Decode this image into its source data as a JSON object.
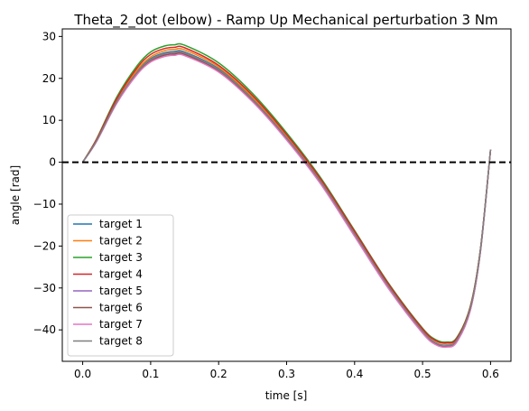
{
  "chart_data": {
    "type": "line",
    "title": "Theta_2_dot (elbow) - Ramp Up Mechanical perturbation 3 Nm",
    "xlabel": "time [s]",
    "ylabel": "angle [rad]",
    "xlim": [
      -0.03,
      0.63
    ],
    "ylim": [
      -47.5,
      31.8
    ],
    "xticks": [
      0.0,
      0.1,
      0.2,
      0.3,
      0.4,
      0.5,
      0.6
    ],
    "xtick_labels": [
      "0.0",
      "0.1",
      "0.2",
      "0.3",
      "0.4",
      "0.5",
      "0.6"
    ],
    "yticks": [
      30,
      20,
      10,
      0,
      -10,
      -20,
      -30,
      -40
    ],
    "ytick_labels": [
      "30",
      "20",
      "10",
      "0",
      "−10",
      "−20",
      "−30",
      "−40"
    ],
    "grid": false,
    "legend_position": "lower-left",
    "reference_line": {
      "y": 0,
      "style": "dashed",
      "color": "#000000"
    },
    "series": [
      {
        "name": "target 1",
        "color": "#1f77b4",
        "x": [
          0.0,
          0.02,
          0.05,
          0.08,
          0.1,
          0.12,
          0.135,
          0.15,
          0.2,
          0.25,
          0.3,
          0.35,
          0.4,
          0.45,
          0.5,
          0.52,
          0.535,
          0.55,
          0.57,
          0.585,
          0.6
        ],
        "y": [
          0.0,
          5.0,
          14.5,
          21.6,
          24.7,
          26.1,
          26.4,
          26.3,
          22.3,
          15.2,
          6.1,
          -4.4,
          -16.9,
          -29.3,
          -39.9,
          -42.6,
          -43.1,
          -42.1,
          -34.7,
          -21.0,
          3.0
        ]
      },
      {
        "name": "target 2",
        "color": "#ff7f0e",
        "x": [
          0.0,
          0.02,
          0.05,
          0.08,
          0.1,
          0.12,
          0.135,
          0.15,
          0.2,
          0.25,
          0.3,
          0.35,
          0.4,
          0.45,
          0.5,
          0.52,
          0.535,
          0.55,
          0.57,
          0.585,
          0.6
        ],
        "y": [
          0.0,
          5.1,
          14.8,
          22.0,
          25.1,
          26.6,
          26.9,
          26.8,
          22.7,
          15.5,
          6.3,
          -4.2,
          -16.7,
          -29.2,
          -39.9,
          -42.7,
          -43.2,
          -42.2,
          -34.8,
          -21.1,
          3.0
        ]
      },
      {
        "name": "target 3",
        "color": "#2ca02c",
        "x": [
          0.0,
          0.02,
          0.05,
          0.08,
          0.1,
          0.12,
          0.135,
          0.15,
          0.2,
          0.25,
          0.3,
          0.35,
          0.4,
          0.45,
          0.5,
          0.52,
          0.535,
          0.55,
          0.57,
          0.585,
          0.6
        ],
        "y": [
          0.0,
          5.4,
          15.5,
          23.0,
          26.3,
          27.7,
          28.0,
          27.9,
          23.7,
          16.4,
          7.0,
          -3.7,
          -16.3,
          -28.9,
          -39.6,
          -42.4,
          -42.9,
          -41.9,
          -34.5,
          -20.9,
          3.0
        ]
      },
      {
        "name": "target 4",
        "color": "#d62728",
        "x": [
          0.0,
          0.02,
          0.05,
          0.08,
          0.1,
          0.12,
          0.135,
          0.15,
          0.2,
          0.25,
          0.3,
          0.35,
          0.4,
          0.45,
          0.5,
          0.52,
          0.535,
          0.55,
          0.57,
          0.585,
          0.6
        ],
        "y": [
          0.0,
          5.3,
          15.1,
          22.5,
          25.7,
          27.1,
          27.4,
          27.3,
          23.1,
          15.9,
          6.6,
          -4.0,
          -16.5,
          -29.1,
          -39.8,
          -42.6,
          -43.1,
          -42.1,
          -34.7,
          -21.0,
          3.0
        ]
      },
      {
        "name": "target 5",
        "color": "#9467bd",
        "x": [
          0.0,
          0.02,
          0.05,
          0.08,
          0.1,
          0.12,
          0.135,
          0.15,
          0.2,
          0.25,
          0.3,
          0.35,
          0.4,
          0.45,
          0.5,
          0.52,
          0.535,
          0.55,
          0.57,
          0.585,
          0.6
        ],
        "y": [
          0.0,
          4.9,
          14.2,
          21.2,
          24.2,
          25.6,
          25.9,
          25.8,
          21.8,
          14.7,
          5.6,
          -4.9,
          -17.4,
          -29.9,
          -40.6,
          -43.4,
          -43.9,
          -42.8,
          -35.3,
          -21.4,
          3.0
        ]
      },
      {
        "name": "target 6",
        "color": "#8c564b",
        "x": [
          0.0,
          0.02,
          0.05,
          0.08,
          0.1,
          0.12,
          0.135,
          0.15,
          0.2,
          0.25,
          0.3,
          0.35,
          0.4,
          0.45,
          0.5,
          0.52,
          0.535,
          0.55,
          0.57,
          0.585,
          0.6
        ],
        "y": [
          0.0,
          4.9,
          14.1,
          21.1,
          24.1,
          25.5,
          25.8,
          25.7,
          21.7,
          14.6,
          5.5,
          -5.0,
          -17.5,
          -30.0,
          -40.7,
          -43.5,
          -44.0,
          -42.9,
          -35.4,
          -21.5,
          3.0
        ]
      },
      {
        "name": "target 7",
        "color": "#e377c2",
        "x": [
          0.0,
          0.02,
          0.05,
          0.08,
          0.1,
          0.12,
          0.135,
          0.15,
          0.2,
          0.25,
          0.3,
          0.35,
          0.4,
          0.45,
          0.5,
          0.52,
          0.535,
          0.55,
          0.57,
          0.585,
          0.6
        ],
        "y": [
          0.0,
          4.8,
          14.0,
          20.9,
          23.9,
          25.2,
          25.5,
          25.4,
          21.5,
          14.4,
          5.3,
          -5.2,
          -17.7,
          -30.2,
          -40.8,
          -43.6,
          -44.1,
          -43.0,
          -35.5,
          -21.5,
          3.0
        ]
      },
      {
        "name": "target 8",
        "color": "#7f7f7f",
        "x": [
          0.0,
          0.02,
          0.05,
          0.08,
          0.1,
          0.12,
          0.135,
          0.15,
          0.2,
          0.25,
          0.3,
          0.35,
          0.4,
          0.45,
          0.5,
          0.52,
          0.535,
          0.55,
          0.57,
          0.585,
          0.6
        ],
        "y": [
          0.0,
          5.0,
          14.4,
          21.5,
          24.5,
          25.9,
          26.2,
          26.1,
          22.1,
          15.0,
          5.9,
          -4.6,
          -17.1,
          -29.6,
          -40.3,
          -43.1,
          -43.6,
          -42.5,
          -35.0,
          -21.2,
          3.0
        ]
      }
    ]
  }
}
